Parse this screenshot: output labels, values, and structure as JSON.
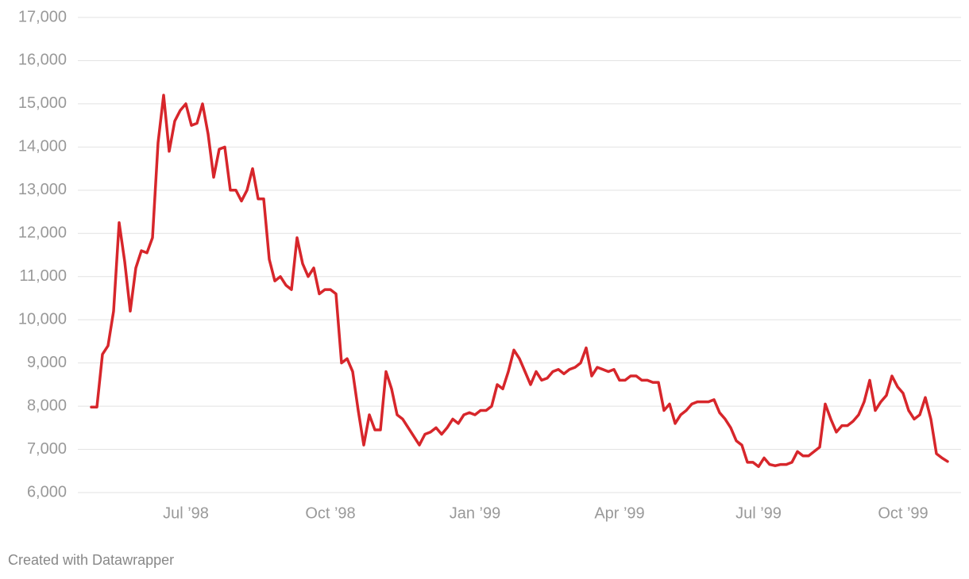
{
  "chart_data": {
    "type": "line",
    "color": "#d7262b",
    "categories": [
      null,
      null,
      null,
      null,
      null,
      null,
      null,
      null,
      null,
      null,
      null,
      null,
      null,
      null,
      null,
      null,
      null,
      "Jul ’98",
      null,
      null,
      null,
      null,
      null,
      null,
      null,
      null,
      null,
      null,
      null,
      null,
      null,
      null,
      null,
      null,
      null,
      null,
      null,
      null,
      null,
      null,
      null,
      null,
      null,
      "Oct ’98",
      null,
      null,
      null,
      null,
      null,
      null,
      null,
      null,
      null,
      null,
      null,
      null,
      null,
      null,
      null,
      null,
      null,
      null,
      null,
      null,
      null,
      null,
      null,
      null,
      null,
      "Jan ’99",
      null,
      null,
      null,
      null,
      null,
      null,
      null,
      null,
      null,
      null,
      null,
      null,
      null,
      null,
      null,
      null,
      null,
      null,
      null,
      null,
      null,
      null,
      null,
      null,
      null,
      "Apr ’99",
      null,
      null,
      null,
      null,
      null,
      null,
      null,
      null,
      null,
      null,
      null,
      null,
      null,
      null,
      null,
      null,
      null,
      null,
      null,
      null,
      null,
      null,
      null,
      null,
      "Jul ’99",
      null,
      null,
      null,
      null,
      null,
      null,
      null,
      null,
      null,
      null,
      null,
      null,
      null,
      null,
      null,
      null,
      null,
      null,
      null,
      null,
      null,
      null,
      null,
      null,
      null,
      "Oct ’99",
      null,
      null,
      null,
      null,
      null,
      null,
      null,
      null
    ],
    "values": [
      7980,
      7980,
      9200,
      9400,
      10200,
      12250,
      11350,
      10200,
      11200,
      11600,
      11550,
      11900,
      14100,
      15200,
      13900,
      14600,
      14850,
      15000,
      14500,
      14550,
      15000,
      14300,
      13300,
      13950,
      14000,
      13000,
      13000,
      12750,
      13000,
      13500,
      12800,
      12800,
      11400,
      10900,
      11000,
      10800,
      10700,
      11900,
      11300,
      11000,
      11200,
      10600,
      10700,
      10700,
      10600,
      9000,
      9100,
      8800,
      7900,
      7100,
      7800,
      7450,
      7450,
      8800,
      8400,
      7800,
      7700,
      7500,
      7300,
      7100,
      7350,
      7400,
      7500,
      7350,
      7500,
      7700,
      7600,
      7800,
      7850,
      7800,
      7900,
      7900,
      8000,
      8500,
      8400,
      8800,
      9300,
      9100,
      8800,
      8500,
      8800,
      8600,
      8650,
      8800,
      8850,
      8750,
      8850,
      8900,
      9000,
      9350,
      8700,
      8900,
      8850,
      8800,
      8850,
      8600,
      8600,
      8700,
      8700,
      8600,
      8600,
      8550,
      8550,
      7900,
      8050,
      7600,
      7800,
      7900,
      8050,
      8100,
      8100,
      8100,
      8150,
      7850,
      7700,
      7500,
      7200,
      7100,
      6700,
      6700,
      6600,
      6800,
      6650,
      6620,
      6650,
      6650,
      6700,
      6950,
      6850,
      6850,
      6950,
      7050,
      8050,
      7700,
      7400,
      7550,
      7550,
      7650,
      7800,
      8100,
      8600,
      7900,
      8100,
      8250,
      8700,
      8450,
      8300,
      7900,
      7700,
      7800,
      8200,
      7700,
      6900,
      6800,
      6720
    ],
    "ylim": [
      6000,
      17000
    ],
    "yticks": [
      {
        "value": 6000,
        "label": "6,000"
      },
      {
        "value": 7000,
        "label": "7,000"
      },
      {
        "value": 8000,
        "label": "8,000"
      },
      {
        "value": 9000,
        "label": "9,000"
      },
      {
        "value": 10000,
        "label": "10,000"
      },
      {
        "value": 11000,
        "label": "11,000"
      },
      {
        "value": 12000,
        "label": "12,000"
      },
      {
        "value": 13000,
        "label": "13,000"
      },
      {
        "value": 14000,
        "label": "14,000"
      },
      {
        "value": 15000,
        "label": "15,000"
      },
      {
        "value": 16000,
        "label": "16,000"
      },
      {
        "value": 17000,
        "label": "17,000"
      }
    ],
    "grid": true,
    "footer": "Created with Datawrapper"
  }
}
